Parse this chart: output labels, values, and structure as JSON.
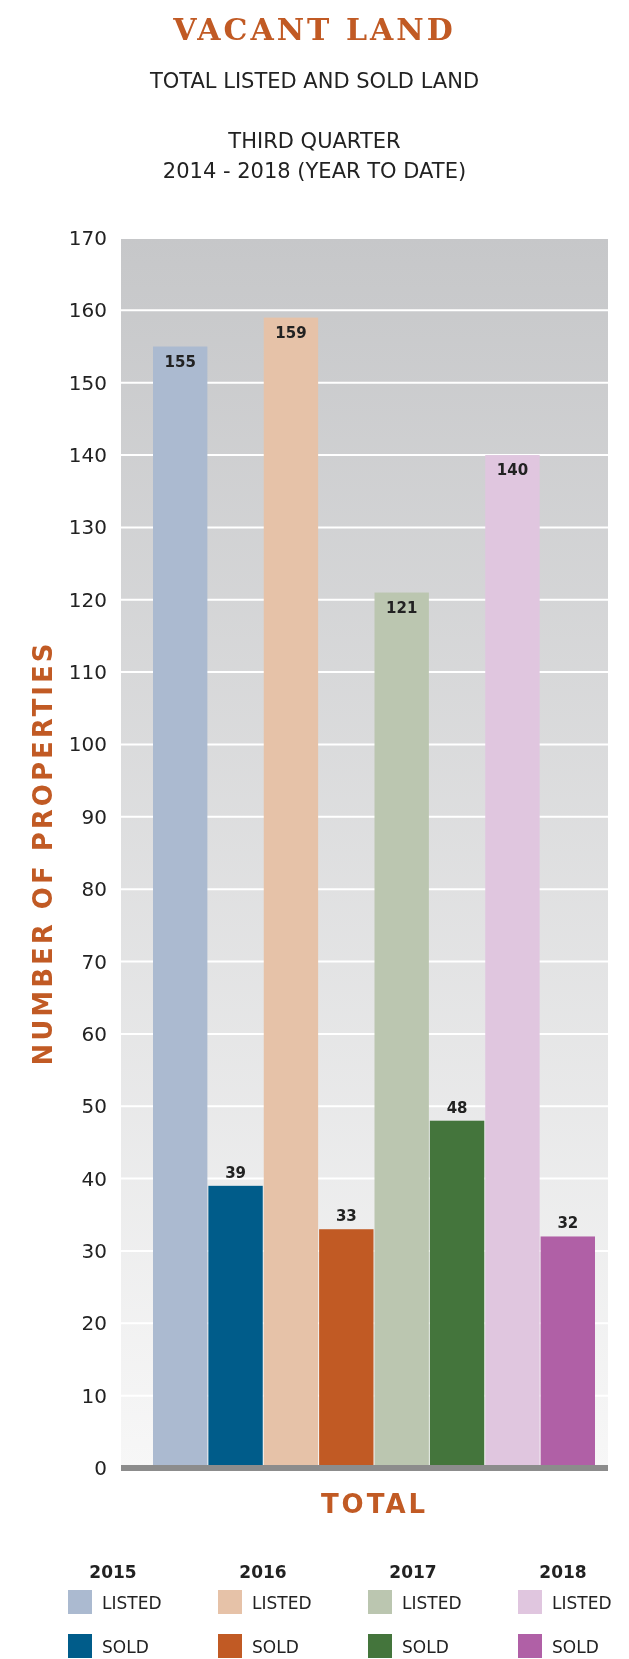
{
  "chart_data": {
    "type": "bar",
    "title": "VACANT LAND",
    "subtitle": "TOTAL LISTED AND SOLD LAND\n\nTHIRD QUARTER\n2014 - 2018 (YEAR TO DATE)",
    "ylabel": "NUMBER OF PROPERTIES",
    "categories": [
      "TOTAL"
    ],
    "series": [
      {
        "name": "LISTED",
        "color": "#abbad0",
        "values": [
          155
        ]
      },
      {
        "name": "SOLD",
        "color": "#005c8a",
        "values": [
          39
        ]
      },
      {
        "name": "LISTED",
        "color": "#e6c2a8",
        "values": [
          159
        ]
      },
      {
        "name": "SOLD",
        "color": "#c15a24",
        "values": [
          33
        ]
      },
      {
        "name": "LISTED",
        "color": "#bbc6b0",
        "values": [
          121
        ]
      },
      {
        "name": "SOLD",
        "color": "#44753c",
        "values": [
          48
        ]
      },
      {
        "name": "LISTED",
        "color": "#e0c6df",
        "values": [
          140
        ]
      },
      {
        "name": "SOLD",
        "color": "#b060a6",
        "values": [
          32
        ]
      }
    ],
    "annotations": [
      "2015",
      "2016",
      "2017",
      "2018"
    ],
    "ylim": [
      0,
      170
    ],
    "yticks": [
      0,
      10,
      20,
      30,
      40,
      50,
      60,
      70,
      80,
      90,
      100,
      110,
      120,
      130,
      140,
      150,
      160,
      170
    ],
    "grid": "y",
    "data_labels": true,
    "legend": "bottom"
  }
}
